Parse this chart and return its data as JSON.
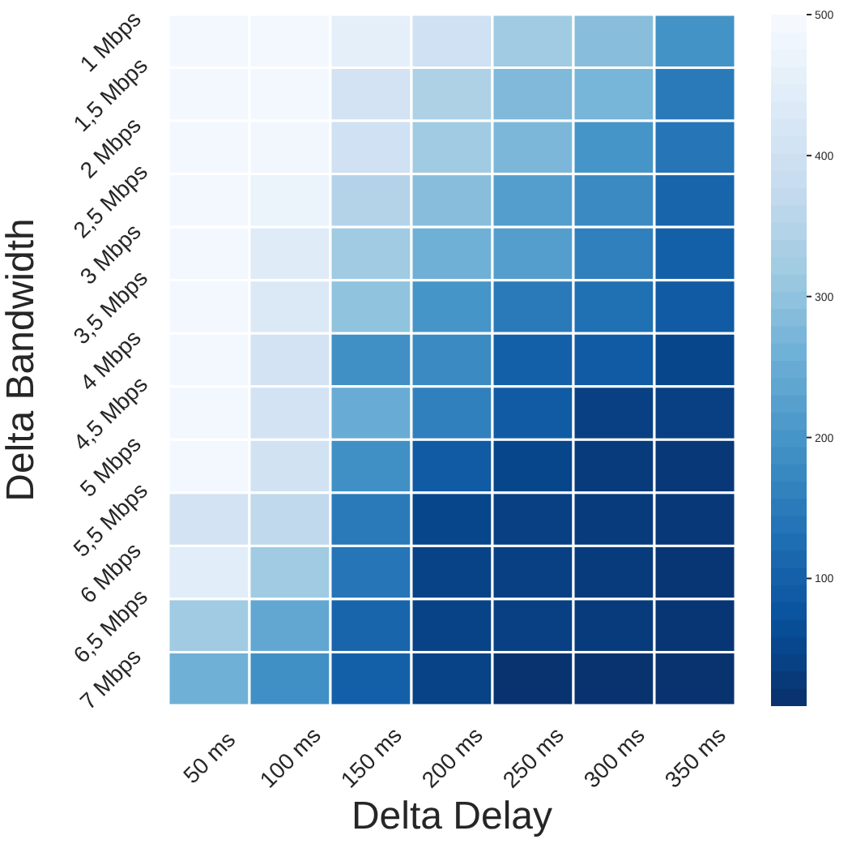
{
  "chart_data": {
    "type": "heatmap",
    "xlabel": "Delta Delay",
    "ylabel": "Delta Bandwidth",
    "categories": [
      "50 ms",
      "100 ms",
      "150 ms",
      "200 ms",
      "250 ms",
      "300 ms",
      "350 ms"
    ],
    "y_categories": [
      "1 Mbps",
      "1,5 Mbps",
      "2 Mbps",
      "2,5 Mbps",
      "3 Mbps",
      "3,5 Mbps",
      "4 Mbps",
      "4,5 Mbps",
      "5 Mbps",
      "5,5 Mbps",
      "6 Mbps",
      "6,5 Mbps",
      "7 Mbps"
    ],
    "cells": [
      [
        490,
        490,
        455,
        400,
        320,
        290,
        195
      ],
      [
        490,
        490,
        410,
        340,
        280,
        270,
        150
      ],
      [
        490,
        485,
        400,
        320,
        275,
        200,
        140
      ],
      [
        490,
        470,
        350,
        290,
        220,
        180,
        110
      ],
      [
        490,
        440,
        320,
        260,
        220,
        160,
        100
      ],
      [
        490,
        430,
        300,
        200,
        150,
        130,
        90
      ],
      [
        490,
        410,
        190,
        180,
        100,
        90,
        50
      ],
      [
        490,
        410,
        250,
        160,
        90,
        40,
        40
      ],
      [
        490,
        405,
        190,
        90,
        50,
        30,
        25
      ],
      [
        410,
        370,
        150,
        50,
        40,
        30,
        25
      ],
      [
        445,
        320,
        140,
        45,
        40,
        30,
        20
      ],
      [
        320,
        240,
        110,
        45,
        40,
        30,
        20
      ],
      [
        260,
        190,
        100,
        45,
        15,
        15,
        15
      ]
    ],
    "clim": [
      10,
      500
    ],
    "cticks": [
      100,
      200,
      300,
      400,
      500
    ]
  }
}
